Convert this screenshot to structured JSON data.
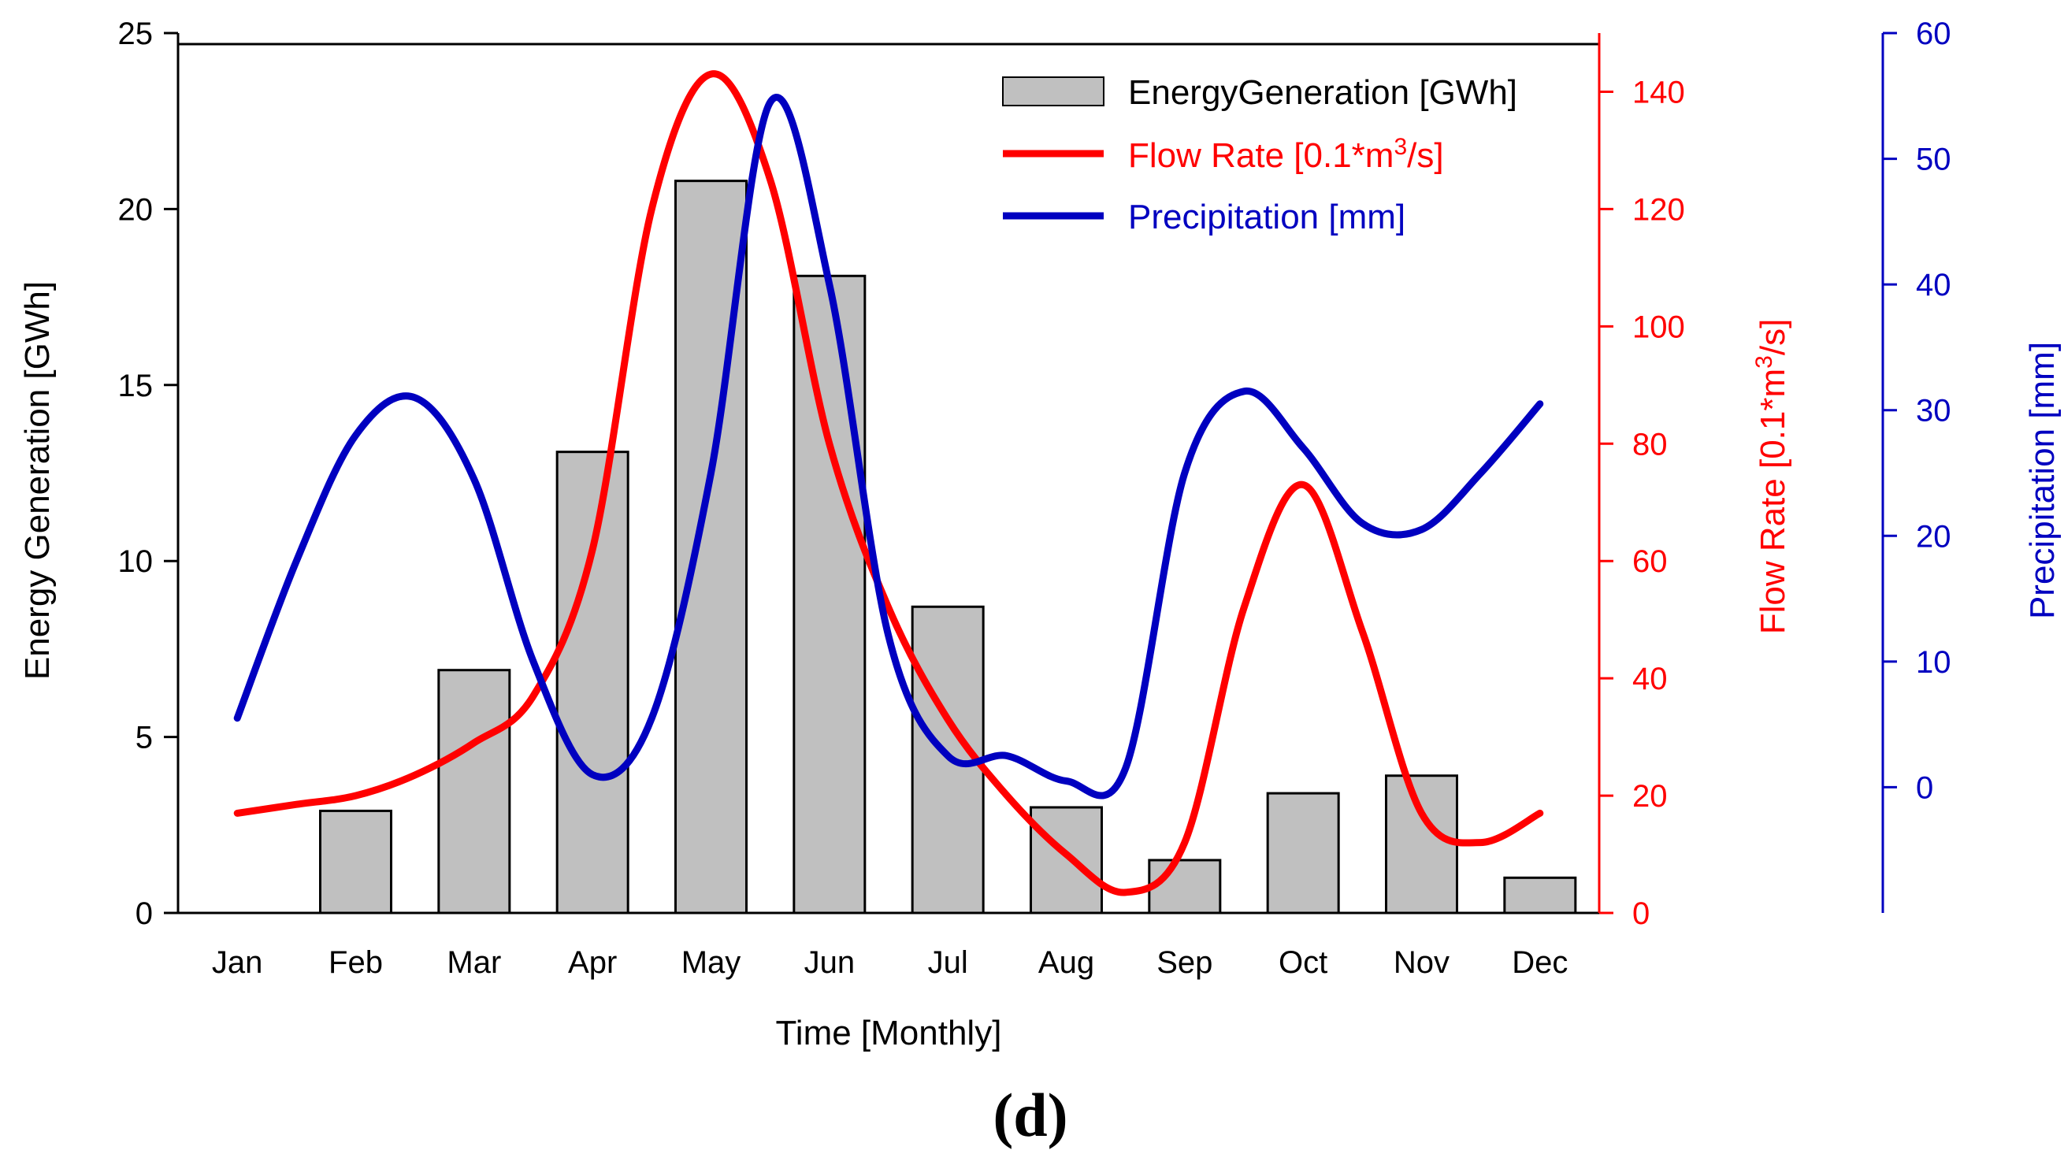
{
  "chart_data": {
    "type": "bar",
    "panel_label": "(d)",
    "categories": [
      "Jan",
      "Feb",
      "Mar",
      "Apr",
      "May",
      "Jun",
      "Jul",
      "Aug",
      "Sep",
      "Oct",
      "Nov",
      "Dec"
    ],
    "series": [
      {
        "name": "EnergyGeneration [GWh]",
        "kind": "bar",
        "axis": "left",
        "color": "#c0c0c0",
        "values": [
          0,
          2.9,
          6.9,
          13.1,
          20.8,
          18.1,
          8.7,
          3.0,
          1.5,
          3.4,
          3.9,
          1.0
        ]
      },
      {
        "name_prefix": "Flow Rate [0.1*m",
        "name_sup": "3",
        "name_suffix": "/s]",
        "kind": "line",
        "axis": "right1",
        "color": "#ff0000",
        "x": [
          0,
          0.5,
          1,
          1.5,
          2,
          2.5,
          3,
          3.5,
          4,
          4.5,
          5,
          5.5,
          6,
          6.5,
          7,
          7.5,
          8,
          8.5,
          9,
          9.5,
          10,
          10.5,
          11
        ],
        "values": [
          17,
          18.5,
          20,
          23.5,
          29,
          37,
          62,
          120,
          143,
          125,
          80,
          52,
          33,
          20,
          10,
          3.5,
          12,
          52,
          73,
          48,
          17,
          12,
          17
        ]
      },
      {
        "name": "Precipitation [mm]",
        "kind": "line",
        "axis": "right2",
        "color": "#0000c0",
        "x": [
          0,
          0.5,
          1,
          1.5,
          2,
          2.5,
          3,
          3.5,
          4,
          4.5,
          5,
          5.5,
          6,
          6.5,
          7,
          7.5,
          8,
          8.5,
          9,
          9.5,
          10,
          10.5,
          11
        ],
        "values": [
          5.5,
          18,
          28,
          31,
          24.5,
          10,
          1.0,
          5.5,
          25,
          54.5,
          40,
          12,
          2.5,
          2.5,
          0.5,
          1.5,
          25,
          31.5,
          27,
          21,
          20.5,
          25,
          30.5
        ]
      }
    ],
    "xlabel": "Time [Monthly]",
    "ylabel": "Energy Generation [GWh]",
    "y2label_prefix": "Flow Rate [0.1*m",
    "y2label_sup": "3",
    "y2label_suffix": "/s]",
    "y3label": "Precipitation [mm]",
    "ylim": [
      0,
      25
    ],
    "y2lim": [
      0,
      150
    ],
    "y3lim": [
      -10,
      60
    ],
    "yticks": [
      0,
      5,
      10,
      15,
      20,
      25
    ],
    "y2ticks": [
      0,
      20,
      40,
      60,
      80,
      100,
      120,
      140
    ],
    "y3ticks": [
      0,
      10,
      20,
      30,
      40,
      50,
      60
    ],
    "legend_position": "top-right",
    "grid": false
  }
}
